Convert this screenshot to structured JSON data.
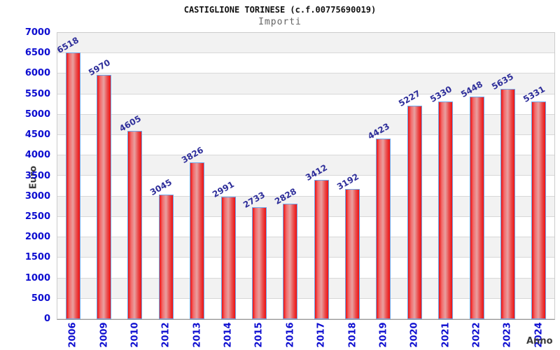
{
  "header": {
    "title": "CASTIGLIONE TORINESE (c.f.00775690019)",
    "subtitle": "Importi"
  },
  "chart_data": {
    "type": "bar",
    "title": "CASTIGLIONE TORINESE (c.f.00775690019)",
    "subtitle": "Importi",
    "xlabel": "Anno",
    "ylabel": "Euro",
    "categories": [
      "2006",
      "2009",
      "2010",
      "2012",
      "2013",
      "2014",
      "2015",
      "2016",
      "2017",
      "2018",
      "2019",
      "2020",
      "2021",
      "2022",
      "2023",
      "2024"
    ],
    "values": [
      6518,
      5970,
      4605,
      3045,
      3826,
      2991,
      2733,
      2828,
      3412,
      3192,
      4423,
      5227,
      5330,
      5448,
      5635,
      5331
    ],
    "ylim": [
      0,
      7000
    ],
    "ytick_step": 500,
    "grid": "horizontal gridlines every 500 with alternating gray/white bands",
    "legend": "none",
    "value_labels": "above each bar, rotated -30deg",
    "colors": {
      "bar_edge": "#ee1111",
      "bar_mid": "#e9a0a0",
      "bar_border": "#6fa6e8",
      "axis_tick_label": "#0d0dd0",
      "value_label": "#2e2e9a",
      "band_gray": "#f2f2f2",
      "gridline": "#d8d8d8",
      "axis_title": "#3c3c3c"
    }
  }
}
